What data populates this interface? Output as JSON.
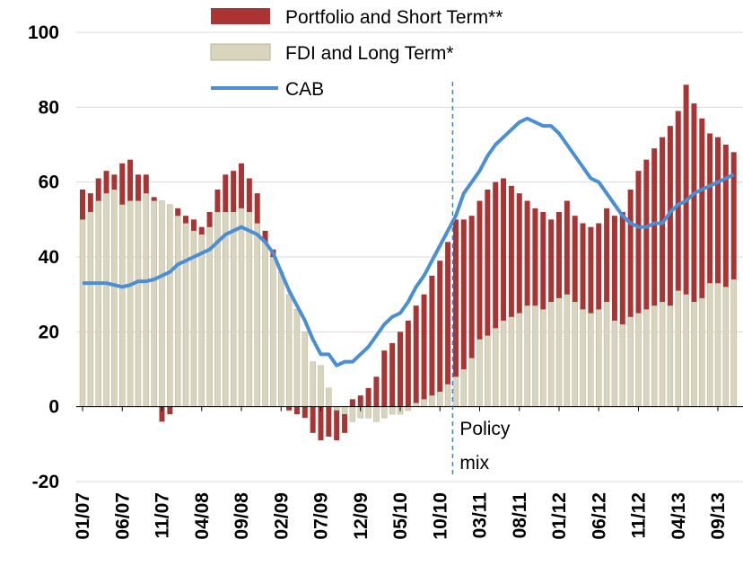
{
  "chart_data": {
    "type": "bar",
    "stacked": true,
    "categories": [
      "01/07",
      null,
      null,
      null,
      null,
      "06/07",
      null,
      null,
      null,
      null,
      "11/07",
      null,
      null,
      null,
      null,
      "04/08",
      null,
      null,
      null,
      null,
      "09/08",
      null,
      null,
      null,
      null,
      "02/09",
      null,
      null,
      null,
      null,
      "07/09",
      null,
      null,
      null,
      null,
      "12/09",
      null,
      null,
      null,
      null,
      "05/10",
      null,
      null,
      null,
      null,
      "10/10",
      null,
      null,
      null,
      null,
      "03/11",
      null,
      null,
      null,
      null,
      "08/11",
      null,
      null,
      null,
      null,
      "01/12",
      null,
      null,
      null,
      null,
      "06/12",
      null,
      null,
      null,
      null,
      "11/12",
      null,
      null,
      null,
      null,
      "04/13",
      null,
      null,
      null,
      null,
      "09/13",
      null,
      null
    ],
    "series": [
      {
        "name": "Portfolio and Short Term**",
        "type": "bar",
        "color": "#a93434",
        "values": [
          8,
          5,
          6,
          6,
          4,
          11,
          11,
          7,
          5,
          1,
          -4,
          -2,
          2,
          2,
          3,
          2,
          4,
          6,
          10,
          11,
          12,
          9,
          8,
          3,
          2,
          0,
          -1,
          -2,
          -3,
          -7,
          -9,
          -8,
          -8,
          -5,
          2,
          3,
          5,
          8,
          15,
          17,
          20,
          23,
          26,
          28,
          32,
          35,
          38,
          42,
          40,
          38,
          37,
          39,
          39,
          38,
          35,
          32,
          28,
          26,
          26,
          22,
          23,
          25,
          23,
          23,
          23,
          23,
          25,
          28,
          30,
          34,
          38,
          40,
          42,
          44,
          48,
          48,
          56,
          53,
          48,
          40,
          39,
          38,
          34
        ]
      },
      {
        "name": "FDI and Long Term*",
        "type": "bar",
        "color": "#d9d4be",
        "values": [
          50,
          52,
          55,
          57,
          58,
          54,
          55,
          55,
          57,
          55,
          55,
          54,
          51,
          49,
          47,
          46,
          48,
          52,
          52,
          52,
          53,
          52,
          49,
          44,
          40,
          36,
          30,
          26,
          20,
          12,
          11,
          5,
          -1,
          -2,
          -4,
          -3,
          -3,
          -4,
          -3,
          -2,
          -2,
          -1,
          1,
          2,
          3,
          4,
          6,
          8,
          10,
          13,
          18,
          19,
          21,
          23,
          24,
          25,
          27,
          27,
          26,
          28,
          29,
          30,
          28,
          26,
          25,
          26,
          28,
          23,
          22,
          24,
          25,
          26,
          27,
          28,
          27,
          31,
          30,
          28,
          29,
          33,
          33,
          32,
          34
        ]
      },
      {
        "name": "CAB",
        "type": "line",
        "color": "#4a8fd6",
        "values": [
          33,
          33,
          33,
          33,
          32.5,
          32,
          32.5,
          33.5,
          33.5,
          34,
          35,
          36,
          38,
          39,
          40,
          41,
          42,
          44,
          46,
          47,
          48,
          47,
          46,
          44,
          41,
          36,
          31,
          27,
          23,
          18,
          14,
          14,
          11,
          12,
          12,
          14,
          16,
          19,
          22,
          24,
          25,
          28,
          32,
          35,
          39,
          43,
          47,
          51,
          57,
          60,
          63,
          67,
          70,
          72,
          74,
          76,
          77,
          76,
          75,
          75,
          73,
          70,
          67,
          64,
          61,
          60,
          57,
          54,
          51,
          49,
          48,
          48,
          49,
          49,
          52,
          54,
          55,
          57,
          58,
          59,
          60,
          61,
          62
        ]
      }
    ],
    "ylim": [
      -20,
      100
    ],
    "yticks": [
      -20,
      0,
      20,
      40,
      60,
      80,
      100
    ],
    "grid": true,
    "annotation": {
      "lines": [
        "Policy",
        "mix"
      ],
      "x": 46.6
    }
  }
}
